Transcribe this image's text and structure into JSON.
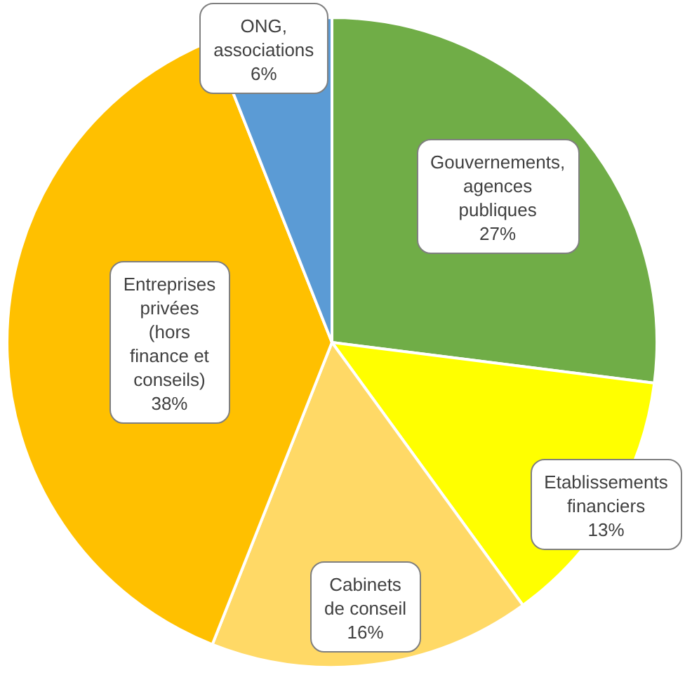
{
  "chart_data": {
    "type": "pie",
    "categories": [
      "Gouvernements,\nagences\npubliques",
      "Etablissements\nfinanciers",
      "Cabinets\nde conseil",
      "Entreprises\nprivées\n(hors\nfinance et\nconseils)",
      "ONG,\nassociations"
    ],
    "values": [
      27,
      13,
      16,
      38,
      6
    ],
    "value_labels": [
      "27%",
      "13%",
      "16%",
      "38%",
      "6%"
    ],
    "colors": [
      "#70ad47",
      "#ffff00",
      "#ffd966",
      "#ffc000",
      "#5b9bd5"
    ],
    "legend": false
  }
}
